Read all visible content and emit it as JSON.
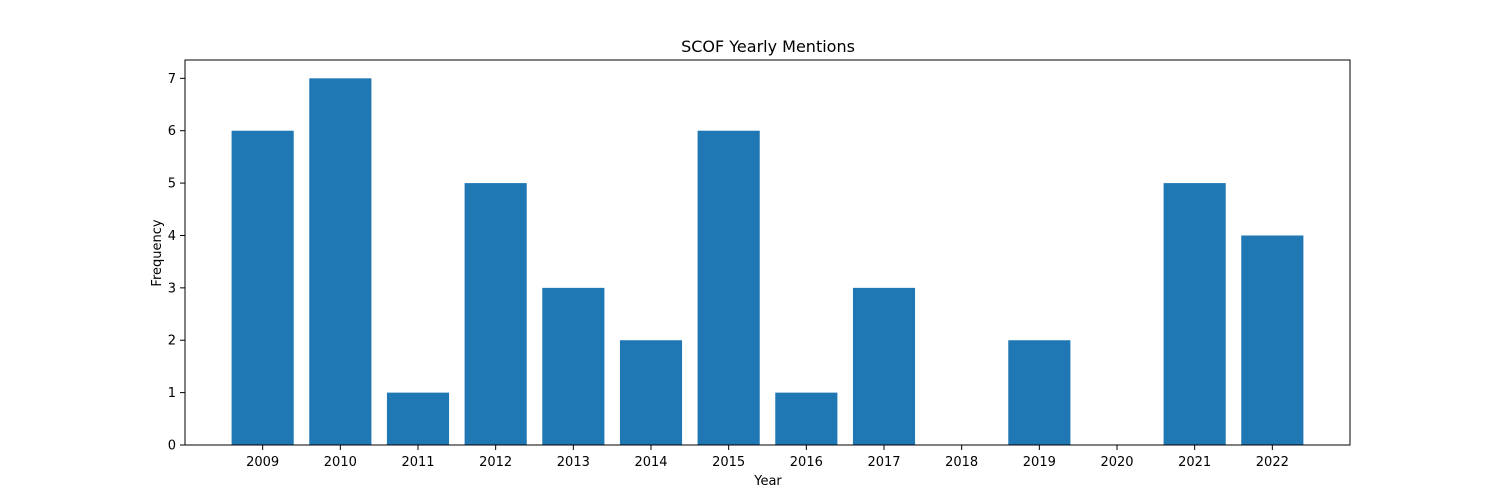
{
  "chart_data": {
    "type": "bar",
    "title": "SCOF Yearly Mentions",
    "xlabel": "Year",
    "ylabel": "Frequency",
    "categories": [
      "2009",
      "2010",
      "2011",
      "2012",
      "2013",
      "2014",
      "2015",
      "2016",
      "2017",
      "2018",
      "2019",
      "2020",
      "2021",
      "2022"
    ],
    "values": [
      6,
      7,
      1,
      5,
      3,
      2,
      6,
      1,
      3,
      0,
      2,
      0,
      5,
      4
    ],
    "ylim": [
      0,
      7.35
    ],
    "yticks": [
      0,
      1,
      2,
      3,
      4,
      5,
      6,
      7
    ],
    "bar_color": "#1f77b4",
    "grid": false,
    "legend": "none"
  }
}
